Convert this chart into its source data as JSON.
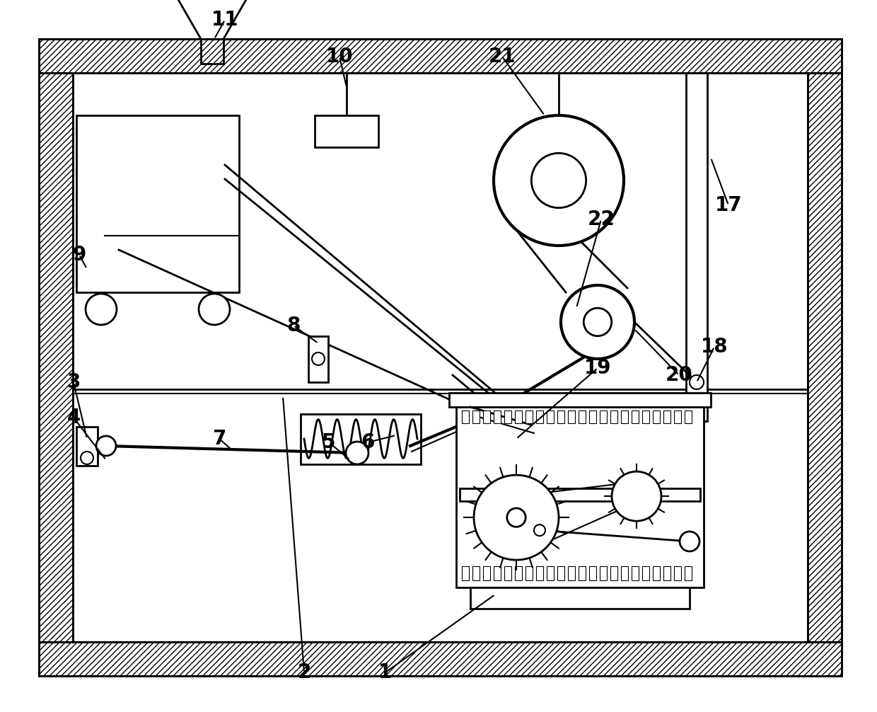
{
  "bg_color": "#ffffff",
  "line_color": "#000000",
  "fig_width": 12.4,
  "fig_height": 10.06,
  "dpi": 100
}
